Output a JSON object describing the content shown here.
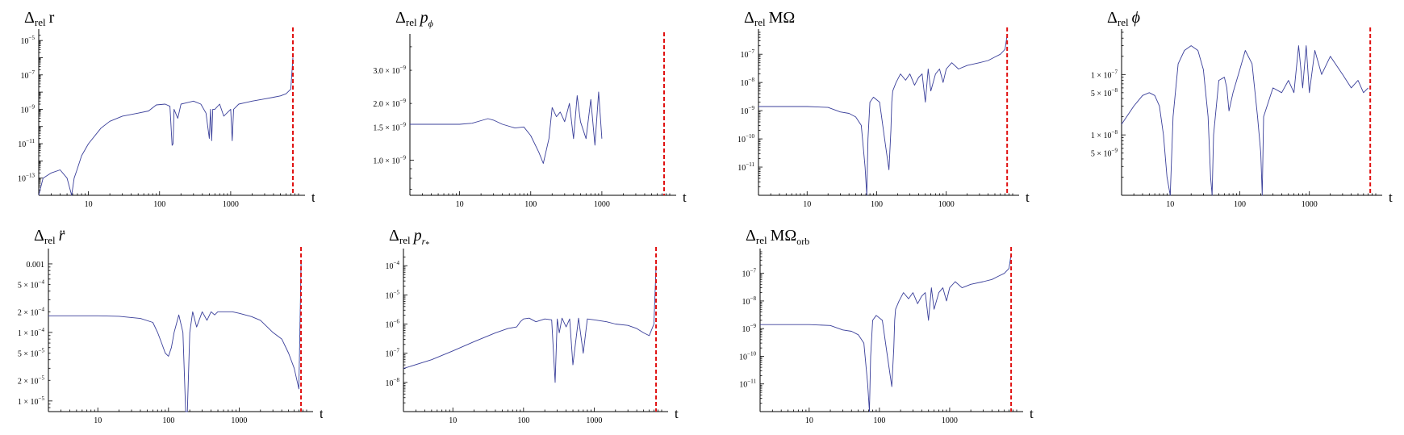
{
  "colors": {
    "series": "#3a3f9a",
    "marker": "#e01010",
    "axis": "#000000"
  },
  "chart_data": [
    {
      "id": "dr",
      "type": "line",
      "title": {
        "delta": "Δ",
        "sub": "rel",
        "sym": "r",
        "symSub": "",
        "italic": false
      },
      "xlabel": "t",
      "xscale": "log",
      "yscale": "log",
      "xlim": [
        2,
        9000
      ],
      "ylim": [
        1e-14,
        3e-05
      ],
      "xticks": [
        {
          "v": 10,
          "label": "10"
        },
        {
          "v": 100,
          "label": "100"
        },
        {
          "v": 1000,
          "label": "1000"
        }
      ],
      "yticks": [
        {
          "v": 1e-05,
          "m": "10",
          "e": "−5"
        },
        {
          "v": 1e-07,
          "m": "10",
          "e": "−7"
        },
        {
          "v": 1e-09,
          "m": "10",
          "e": "−9"
        },
        {
          "v": 1e-11,
          "m": "10",
          "e": "−11"
        },
        {
          "v": 1e-13,
          "m": "10",
          "e": "−13"
        }
      ],
      "marker_t": 7500,
      "series": [
        {
          "x": [
            2,
            2.3,
            3,
            4,
            5,
            5.8,
            6.3,
            6.9,
            8,
            10,
            15,
            20,
            30,
            50,
            70,
            90,
            120,
            140,
            150,
            155,
            160,
            180,
            200,
            300,
            380,
            450,
            500,
            520,
            540,
            560,
            600,
            700,
            800,
            1000,
            1050,
            1100,
            1300,
            2000,
            3000,
            4000,
            5000,
            6000,
            7000,
            7500
          ],
          "y": [
            1e-14,
            1e-13,
            2e-13,
            3e-13,
            1e-13,
            1e-14,
            1e-13,
            3e-13,
            2e-12,
            1e-11,
            8e-11,
            2e-10,
            4e-10,
            6e-10,
            8e-10,
            1.8e-09,
            2e-09,
            1.5e-09,
            8e-12,
            1e-11,
            1e-09,
            3e-10,
            2e-09,
            3e-09,
            2e-09,
            6e-10,
            2e-11,
            1e-09,
            1.5e-11,
            1e-09,
            1e-09,
            2e-09,
            4e-10,
            1e-09,
            1.5e-11,
            1e-09,
            2e-09,
            3e-09,
            4e-09,
            5e-09,
            6e-09,
            8e-09,
            1.5e-08,
            1e-06
          ]
        }
      ]
    },
    {
      "id": "dpphi",
      "type": "line",
      "title": {
        "delta": "Δ",
        "sub": "rel",
        "sym": "p",
        "symSub": "ϕ",
        "italic": true
      },
      "xlabel": "t",
      "xscale": "log",
      "yscale": "log",
      "xlim": [
        2,
        9000
      ],
      "ylim": [
        6.5e-10,
        4.5e-09
      ],
      "xticks": [
        {
          "v": 10,
          "label": "10"
        },
        {
          "v": 100,
          "label": "100"
        },
        {
          "v": 1000,
          "label": "1000"
        }
      ],
      "yticks": [
        {
          "v": 3e-09,
          "m": "3.0 × 10",
          "e": "−9"
        },
        {
          "v": 2e-09,
          "m": "2.0 × 10",
          "e": "−9"
        },
        {
          "v": 1.5e-09,
          "m": "1.5 × 10",
          "e": "−9"
        },
        {
          "v": 1e-09,
          "m": "1.0 × 10",
          "e": "−9"
        }
      ],
      "marker_t": 7500,
      "series": [
        {
          "x": [
            2,
            5,
            10,
            15,
            20,
            25,
            30,
            40,
            60,
            80,
            100,
            130,
            150,
            180,
            200,
            230,
            260,
            300,
            350,
            400,
            450,
            500,
            600,
            700,
            800,
            900,
            1000
          ],
          "y": [
            1.55e-09,
            1.55e-09,
            1.55e-09,
            1.57e-09,
            1.62e-09,
            1.66e-09,
            1.63e-09,
            1.55e-09,
            1.48e-09,
            1.5e-09,
            1.35e-09,
            1.1e-09,
            9.6e-10,
            1.3e-09,
            1.9e-09,
            1.7e-09,
            1.8e-09,
            1.6e-09,
            2e-09,
            1.3e-09,
            2.2e-09,
            1.6e-09,
            1.3e-09,
            2.1e-09,
            1.2e-09,
            2.3e-09,
            1.3e-09
          ]
        }
      ]
    },
    {
      "id": "dmomega",
      "type": "line",
      "title": {
        "delta": "Δ",
        "sub": "rel",
        "sym": "MΩ",
        "symSub": "",
        "italic": false
      },
      "xlabel": "t",
      "xscale": "log",
      "yscale": "log",
      "xlim": [
        2,
        9000
      ],
      "ylim": [
        1e-12,
        6e-07
      ],
      "xticks": [
        {
          "v": 10,
          "label": "10"
        },
        {
          "v": 100,
          "label": "100"
        },
        {
          "v": 1000,
          "label": "1000"
        }
      ],
      "yticks": [
        {
          "v": 1e-07,
          "m": "10",
          "e": "−7"
        },
        {
          "v": 1e-08,
          "m": "10",
          "e": "−8"
        },
        {
          "v": 1e-09,
          "m": "10",
          "e": "−9"
        },
        {
          "v": 1e-10,
          "m": "10",
          "e": "−10"
        },
        {
          "v": 1e-11,
          "m": "10",
          "e": "−11"
        }
      ],
      "marker_t": 7500,
      "series": [
        {
          "x": [
            2,
            5,
            10,
            20,
            30,
            40,
            50,
            60,
            68,
            72,
            75,
            80,
            90,
            110,
            130,
            150,
            160,
            165,
            170,
            190,
            220,
            260,
            300,
            350,
            400,
            450,
            500,
            550,
            600,
            700,
            800,
            900,
            1000,
            1200,
            1500,
            2000,
            3000,
            4000,
            5000,
            6000,
            7000,
            7500
          ],
          "y": [
            1.4e-09,
            1.4e-09,
            1.4e-09,
            1.3e-09,
            9e-10,
            8e-10,
            6e-10,
            3e-10,
            1e-11,
            1e-12,
            1e-10,
            2e-09,
            3e-09,
            2e-09,
            1e-10,
            8e-12,
            2e-10,
            2e-09,
            5e-09,
            1e-08,
            2e-08,
            1.2e-08,
            2e-08,
            8e-09,
            1.5e-08,
            2e-08,
            2e-09,
            3e-08,
            5e-09,
            2e-08,
            3e-08,
            1e-08,
            3e-08,
            5e-08,
            3e-08,
            4e-08,
            5e-08,
            6e-08,
            8e-08,
            1e-07,
            1.5e-07,
            5e-07
          ]
        }
      ]
    },
    {
      "id": "dphi",
      "type": "line",
      "title": {
        "delta": "Δ",
        "sub": "rel",
        "sym": "ϕ",
        "symSub": "",
        "italic": true
      },
      "xlabel": "t",
      "xscale": "log",
      "yscale": "log",
      "xlim": [
        2,
        9000
      ],
      "ylim": [
        1e-09,
        5e-07
      ],
      "xticks": [
        {
          "v": 10,
          "label": "10"
        },
        {
          "v": 100,
          "label": "100"
        },
        {
          "v": 1000,
          "label": "1000"
        }
      ],
      "yticks": [
        {
          "v": 1e-07,
          "m": "1 × 10",
          "e": "−7"
        },
        {
          "v": 5e-08,
          "m": "5 × 10",
          "e": "−8"
        },
        {
          "v": 1e-08,
          "m": "1 × 10",
          "e": "−8"
        },
        {
          "v": 5e-09,
          "m": "5 × 10",
          "e": "−9"
        }
      ],
      "marker_t": 7500,
      "series": [
        {
          "x": [
            2,
            3,
            4,
            5,
            6,
            7,
            8,
            9,
            10,
            11,
            13,
            16,
            20,
            25,
            30,
            35,
            38,
            40,
            42,
            50,
            60,
            65,
            70,
            80,
            100,
            120,
            150,
            180,
            200,
            210,
            220,
            300,
            400,
            500,
            600,
            700,
            800,
            900,
            1000,
            1200,
            1500,
            2000,
            3000,
            4000,
            5000,
            6000,
            7000
          ],
          "y": [
            1.5e-08,
            3e-08,
            4.5e-08,
            5e-08,
            4.5e-08,
            3e-08,
            1e-08,
            2e-09,
            1e-09,
            2e-08,
            1.5e-07,
            2.5e-07,
            3e-07,
            2.5e-07,
            1.2e-07,
            2e-08,
            2e-09,
            1e-09,
            1e-08,
            8e-08,
            9e-08,
            6e-08,
            2.5e-08,
            5e-08,
            1.2e-07,
            2.5e-07,
            1.5e-07,
            2e-08,
            5e-09,
            1e-09,
            2e-08,
            6e-08,
            5e-08,
            8e-08,
            5e-08,
            3e-07,
            6e-08,
            3e-07,
            5e-08,
            2.5e-07,
            1e-07,
            2e-07,
            1e-07,
            6e-08,
            8e-08,
            5e-08,
            6e-08
          ]
        }
      ]
    },
    {
      "id": "drdd",
      "type": "line",
      "title": {
        "delta": "Δ",
        "sub": "rel",
        "sym": "r̈",
        "symSub": "",
        "italic": true
      },
      "xlabel": "t",
      "xscale": "log",
      "yscale": "log",
      "xlim": [
        2,
        9000
      ],
      "ylim": [
        7e-06,
        0.0015
      ],
      "xticks": [
        {
          "v": 10,
          "label": "10"
        },
        {
          "v": 100,
          "label": "100"
        },
        {
          "v": 1000,
          "label": "1000"
        }
      ],
      "yticks": [
        {
          "v": 0.001,
          "m": "0.001",
          "e": ""
        },
        {
          "v": 0.0005,
          "m": "5 × 10",
          "e": "−4"
        },
        {
          "v": 0.0002,
          "m": "2 × 10",
          "e": "−4"
        },
        {
          "v": 0.0001,
          "m": "1 × 10",
          "e": "−4"
        },
        {
          "v": 5e-05,
          "m": "5 × 10",
          "e": "−5"
        },
        {
          "v": 2e-05,
          "m": "2 × 10",
          "e": "−5"
        },
        {
          "v": 1e-05,
          "m": "1 × 10",
          "e": "−5"
        }
      ],
      "marker_t": 7500,
      "series": [
        {
          "x": [
            2,
            5,
            10,
            20,
            40,
            60,
            70,
            80,
            90,
            100,
            110,
            120,
            140,
            160,
            175,
            185,
            200,
            220,
            250,
            300,
            350,
            400,
            450,
            500,
            600,
            800,
            1000,
            1500,
            2000,
            3000,
            4000,
            5000,
            6000,
            7000,
            7500
          ],
          "y": [
            0.000175,
            0.000175,
            0.000175,
            0.000172,
            0.00016,
            0.00014,
            0.0001,
            7e-05,
            5e-05,
            4.5e-05,
            6e-05,
            0.0001,
            0.00018,
            0.0001,
            7e-06,
            7e-06,
            0.0001,
            0.0002,
            0.00012,
            0.0002,
            0.00015,
            0.0002,
            0.00018,
            0.0002,
            0.0002,
            0.0002,
            0.00019,
            0.00017,
            0.00015,
            0.0001,
            8e-05,
            5e-05,
            3e-05,
            1.5e-05,
            0.001
          ]
        }
      ]
    },
    {
      "id": "dprs",
      "type": "line",
      "title": {
        "delta": "Δ",
        "sub": "rel",
        "sym": "p",
        "symSub": "r",
        "symSub2": "*",
        "italic": true
      },
      "xlabel": "t",
      "xscale": "log",
      "yscale": "log",
      "xlim": [
        2,
        9000
      ],
      "ylim": [
        1e-09,
        0.0003
      ],
      "xticks": [
        {
          "v": 10,
          "label": "10"
        },
        {
          "v": 100,
          "label": "100"
        },
        {
          "v": 1000,
          "label": "1000"
        }
      ],
      "yticks": [
        {
          "v": 0.0001,
          "m": "10",
          "e": "−4"
        },
        {
          "v": 1e-05,
          "m": "10",
          "e": "−5"
        },
        {
          "v": 1e-06,
          "m": "10",
          "e": "−6"
        },
        {
          "v": 1e-07,
          "m": "10",
          "e": "−7"
        },
        {
          "v": 1e-08,
          "m": "10",
          "e": "−8"
        }
      ],
      "marker_t": 7500,
      "series": [
        {
          "x": [
            2,
            5,
            10,
            20,
            40,
            60,
            80,
            90,
            100,
            120,
            150,
            200,
            250,
            280,
            300,
            320,
            350,
            400,
            450,
            500,
            600,
            700,
            800,
            1000,
            1500,
            2000,
            3000,
            4000,
            5000,
            6000,
            7000,
            7500
          ],
          "y": [
            3e-08,
            6e-08,
            1.2e-07,
            2.5e-07,
            5e-07,
            7e-07,
            8e-07,
            1.2e-06,
            1.5e-06,
            1.6e-06,
            1.2e-06,
            1.5e-06,
            1.4e-06,
            1e-08,
            1.5e-06,
            5e-07,
            1.6e-06,
            8e-07,
            1.5e-06,
            4e-08,
            1.6e-06,
            1e-07,
            1.5e-06,
            1.4e-06,
            1.2e-06,
            1e-06,
            9e-07,
            7e-07,
            5e-07,
            4e-07,
            1e-06,
            0.0001
          ]
        }
      ]
    },
    {
      "id": "dmomegaorb",
      "type": "line",
      "title": {
        "delta": "Δ",
        "sub": "rel",
        "sym": "MΩ",
        "symSub": "orb",
        "italic": false
      },
      "xlabel": "t",
      "xscale": "log",
      "yscale": "log",
      "xlim": [
        2,
        9000
      ],
      "ylim": [
        1e-12,
        6e-07
      ],
      "xticks": [
        {
          "v": 10,
          "label": "10"
        },
        {
          "v": 100,
          "label": "100"
        },
        {
          "v": 1000,
          "label": "1000"
        }
      ],
      "yticks": [
        {
          "v": 1e-07,
          "m": "10",
          "e": "−7"
        },
        {
          "v": 1e-08,
          "m": "10",
          "e": "−8"
        },
        {
          "v": 1e-09,
          "m": "10",
          "e": "−9"
        },
        {
          "v": 1e-10,
          "m": "10",
          "e": "−10"
        },
        {
          "v": 1e-11,
          "m": "10",
          "e": "−11"
        }
      ],
      "marker_t": 7500,
      "series": [
        {
          "x": [
            2,
            5,
            10,
            20,
            30,
            40,
            50,
            60,
            68,
            72,
            75,
            80,
            90,
            110,
            130,
            150,
            160,
            165,
            170,
            190,
            220,
            260,
            300,
            350,
            400,
            450,
            500,
            550,
            600,
            700,
            800,
            900,
            1000,
            1200,
            1500,
            2000,
            3000,
            4000,
            5000,
            6000,
            7000,
            7500
          ],
          "y": [
            1.4e-09,
            1.4e-09,
            1.4e-09,
            1.3e-09,
            9e-10,
            8e-10,
            6e-10,
            3e-10,
            1e-11,
            1e-12,
            1e-10,
            2e-09,
            3e-09,
            2e-09,
            1e-10,
            8e-12,
            2e-10,
            2e-09,
            5e-09,
            1e-08,
            2e-08,
            1.2e-08,
            2e-08,
            8e-09,
            1.5e-08,
            2e-08,
            2e-09,
            3e-08,
            5e-09,
            2e-08,
            3e-08,
            1e-08,
            3e-08,
            5e-08,
            3e-08,
            4e-08,
            5e-08,
            6e-08,
            8e-08,
            1e-07,
            1.5e-07,
            5e-07
          ]
        }
      ]
    }
  ]
}
